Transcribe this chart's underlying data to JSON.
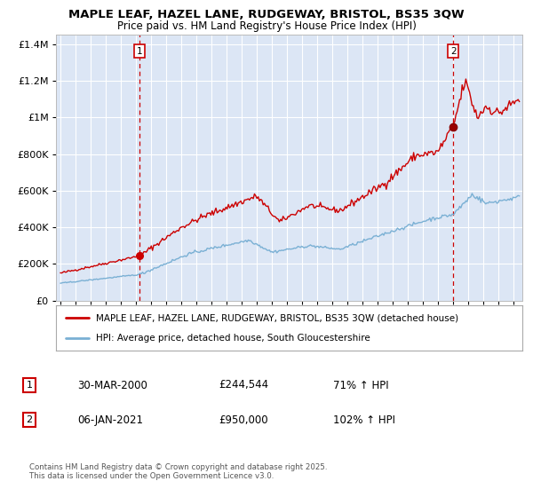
{
  "title": "MAPLE LEAF, HAZEL LANE, RUDGEWAY, BRISTOL, BS35 3QW",
  "subtitle": "Price paid vs. HM Land Registry's House Price Index (HPI)",
  "red_label": "MAPLE LEAF, HAZEL LANE, RUDGEWAY, BRISTOL, BS35 3QW (detached house)",
  "blue_label": "HPI: Average price, detached house, South Gloucestershire",
  "annotation1_num": "1",
  "annotation1_date": "30-MAR-2000",
  "annotation1_price": "£244,544",
  "annotation1_hpi": "71% ↑ HPI",
  "annotation2_num": "2",
  "annotation2_date": "06-JAN-2021",
  "annotation2_price": "£950,000",
  "annotation2_hpi": "102% ↑ HPI",
  "footnote": "Contains HM Land Registry data © Crown copyright and database right 2025.\nThis data is licensed under the Open Government Licence v3.0.",
  "sale1_year": 2000.25,
  "sale1_value_red": 244544,
  "sale2_year": 2021.02,
  "sale2_value_red": 950000,
  "ylim": [
    0,
    1450000
  ],
  "xlim_start": 1994.7,
  "xlim_end": 2025.6,
  "fig_bg": "#ffffff",
  "plot_bg": "#dce6f5",
  "red_color": "#cc0000",
  "blue_color": "#7ab0d4",
  "grid_color": "#ffffff",
  "dashed_line_color": "#cc0000",
  "sale1_marker_color": "#cc0000",
  "sale2_marker_color": "#880000"
}
